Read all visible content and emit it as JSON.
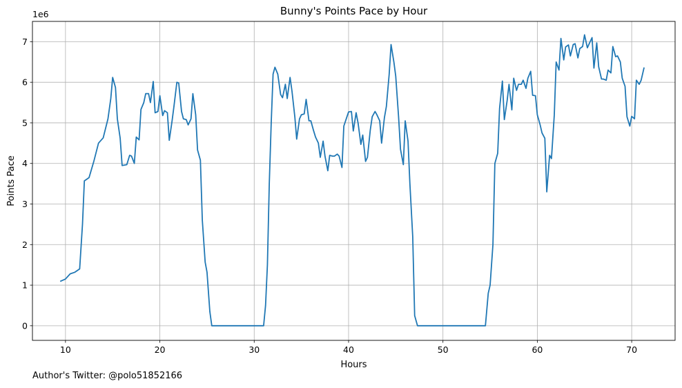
{
  "chart_data": {
    "type": "line",
    "title": "Bunny's Points Pace by Hour",
    "xlabel": "Hours",
    "ylabel": "Points Pace",
    "y_offset_label": "1e6",
    "xlim": [
      6.5,
      74.6
    ],
    "ylim": [
      -0.36,
      7.5
    ],
    "y_unit_multiplier": 1000000,
    "x_ticks": [
      10,
      20,
      30,
      40,
      50,
      60,
      70
    ],
    "y_ticks": [
      0,
      1,
      2,
      3,
      4,
      5,
      6,
      7
    ],
    "grid": true,
    "legend": "none",
    "series": [
      {
        "color": "#1f77b4",
        "x": [
          9.5,
          10.0,
          10.5,
          11.0,
          11.5,
          11.8,
          12.0,
          12.5,
          13.0,
          13.5,
          14.0,
          14.5,
          14.8,
          15.0,
          15.3,
          15.5,
          15.8,
          16.0,
          16.5,
          16.8,
          17.0,
          17.3,
          17.5,
          17.8,
          18.0,
          18.3,
          18.5,
          18.8,
          19.0,
          19.3,
          19.5,
          19.8,
          20.0,
          20.3,
          20.5,
          20.8,
          21.0,
          21.3,
          21.5,
          21.8,
          22.0,
          22.3,
          22.5,
          22.8,
          23.0,
          23.3,
          23.5,
          23.8,
          24.0,
          24.3,
          24.5,
          24.8,
          25.0,
          25.3,
          25.5,
          26.0,
          30.0,
          31.0,
          31.2,
          31.4,
          31.6,
          31.8,
          32.0,
          32.2,
          32.5,
          32.8,
          33.0,
          33.3,
          33.5,
          33.8,
          34.0,
          34.3,
          34.5,
          34.8,
          35.0,
          35.3,
          35.5,
          35.8,
          36.0,
          36.3,
          36.5,
          36.8,
          37.0,
          37.3,
          37.5,
          37.8,
          38.0,
          38.3,
          38.5,
          38.8,
          39.0,
          39.3,
          39.5,
          39.8,
          40.0,
          40.3,
          40.5,
          40.8,
          41.0,
          41.3,
          41.5,
          41.8,
          42.0,
          42.3,
          42.5,
          42.8,
          43.0,
          43.3,
          43.5,
          43.8,
          44.0,
          44.3,
          44.5,
          44.8,
          45.0,
          45.3,
          45.5,
          45.8,
          46.0,
          46.3,
          46.5,
          46.8,
          47.0,
          47.3,
          47.5,
          48.0,
          54.5,
          54.8,
          55.0,
          55.3,
          55.5,
          55.8,
          56.0,
          56.3,
          56.5,
          56.8,
          57.0,
          57.3,
          57.5,
          57.8,
          58.0,
          58.3,
          58.5,
          58.8,
          59.0,
          59.3,
          59.5,
          59.8,
          60.0,
          60.3,
          60.5,
          60.8,
          61.0,
          61.3,
          61.5,
          61.8,
          62.0,
          62.3,
          62.5,
          62.8,
          63.0,
          63.3,
          63.5,
          63.8,
          64.0,
          64.3,
          64.5,
          64.8,
          65.0,
          65.3,
          65.5,
          65.8,
          66.0,
          66.3,
          66.5,
          66.8,
          67.0,
          67.3,
          67.5,
          67.8,
          68.0,
          68.3,
          68.5,
          68.8,
          69.0,
          69.3,
          69.5,
          69.8,
          70.0,
          70.3,
          70.5,
          70.8,
          71.0,
          71.3
        ],
        "y": [
          1.1,
          1.15,
          1.28,
          1.32,
          1.4,
          2.5,
          3.57,
          3.65,
          4.05,
          4.5,
          4.63,
          5.1,
          5.6,
          6.12,
          5.87,
          5.1,
          4.62,
          3.95,
          3.97,
          4.2,
          4.18,
          4.0,
          4.65,
          4.58,
          5.33,
          5.5,
          5.72,
          5.72,
          5.5,
          6.02,
          5.25,
          5.28,
          5.67,
          5.18,
          5.3,
          5.25,
          4.57,
          5.05,
          5.42,
          6.0,
          5.98,
          5.28,
          5.1,
          5.08,
          4.95,
          5.1,
          5.72,
          5.2,
          4.33,
          4.08,
          2.6,
          1.57,
          1.32,
          0.35,
          0.0,
          0.0,
          0.0,
          0.0,
          0.5,
          1.5,
          3.5,
          5.0,
          6.2,
          6.37,
          6.2,
          5.7,
          5.62,
          5.95,
          5.6,
          6.12,
          5.78,
          5.15,
          4.6,
          5.1,
          5.2,
          5.22,
          5.58,
          5.05,
          5.05,
          4.8,
          4.65,
          4.5,
          4.15,
          4.55,
          4.18,
          3.82,
          4.2,
          4.18,
          4.18,
          4.23,
          4.18,
          3.9,
          4.92,
          5.13,
          5.27,
          5.28,
          4.8,
          5.25,
          5.0,
          4.47,
          4.7,
          4.05,
          4.15,
          4.82,
          5.15,
          5.28,
          5.2,
          5.05,
          4.5,
          5.13,
          5.4,
          6.2,
          6.93,
          6.5,
          6.15,
          5.15,
          4.35,
          3.97,
          5.05,
          4.55,
          3.5,
          2.2,
          0.25,
          0.0,
          0.0,
          0.0,
          0.0,
          0.8,
          1.0,
          2.0,
          4.0,
          4.25,
          5.35,
          6.03,
          5.08,
          5.55,
          5.95,
          5.32,
          6.1,
          5.8,
          5.95,
          5.95,
          6.05,
          5.85,
          6.1,
          6.27,
          5.68,
          5.67,
          5.2,
          4.95,
          4.75,
          4.62,
          3.3,
          4.2,
          4.12,
          5.2,
          6.5,
          6.3,
          7.08,
          6.55,
          6.87,
          6.92,
          6.65,
          6.93,
          6.95,
          6.6,
          6.83,
          6.88,
          7.17,
          6.85,
          6.95,
          7.1,
          6.35,
          6.97,
          6.38,
          6.08,
          6.08,
          6.05,
          6.3,
          6.23,
          6.88,
          6.63,
          6.65,
          6.5,
          6.1,
          5.9,
          5.15,
          4.92,
          5.16,
          5.1,
          6.05,
          5.95,
          6.05,
          6.35
        ]
      }
    ]
  },
  "footnote": "Author's Twitter: @polo51852166"
}
